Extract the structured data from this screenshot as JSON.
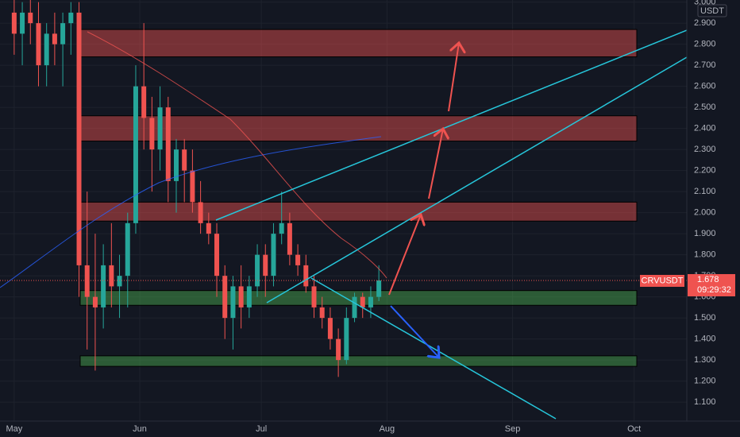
{
  "chart_data": {
    "type": "candlestick",
    "symbol": "CRVUSDT",
    "currency": "USDT",
    "last_price": {
      "value": 1.678,
      "label": "1.678"
    },
    "countdown": "09:29:32",
    "up_color": "#26a69a",
    "down_color": "#ef5350",
    "grid": true,
    "x": [
      0,
      2,
      4,
      6,
      8,
      10,
      12,
      14,
      16,
      18,
      20,
      22,
      24,
      26,
      28,
      30,
      32,
      34,
      36,
      38,
      40,
      42,
      44,
      46,
      48,
      50,
      52,
      54,
      56,
      58,
      60,
      62,
      64,
      66,
      68,
      70,
      72,
      74,
      76,
      78,
      80,
      82,
      84,
      86,
      88,
      90
    ],
    "open": [
      2.95,
      2.85,
      2.95,
      2.9,
      2.7,
      2.85,
      2.8,
      2.9,
      2.95,
      1.75,
      1.6,
      1.55,
      1.75,
      1.65,
      1.7,
      1.95,
      2.6,
      2.45,
      2.3,
      2.5,
      2.15,
      2.3,
      2.2,
      2.05,
      1.95,
      1.9,
      1.7,
      1.5,
      1.65,
      1.55,
      1.65,
      1.8,
      1.7,
      1.9,
      1.95,
      1.8,
      1.75,
      1.65,
      1.55,
      1.5,
      1.4,
      1.3,
      1.5,
      1.6,
      1.55,
      1.6
    ],
    "high": [
      3.05,
      3.0,
      3.05,
      3.0,
      2.9,
      2.95,
      2.95,
      3.0,
      3.0,
      2.1,
      1.9,
      1.85,
      1.95,
      1.8,
      2.0,
      2.7,
      2.9,
      2.55,
      2.6,
      2.55,
      2.35,
      2.35,
      2.3,
      2.15,
      2.0,
      1.95,
      1.75,
      1.7,
      1.75,
      1.7,
      1.85,
      1.85,
      1.95,
      2.1,
      2.0,
      1.85,
      1.8,
      1.7,
      1.6,
      1.55,
      1.45,
      1.55,
      1.62,
      1.62,
      1.65,
      1.75
    ],
    "low": [
      2.75,
      2.7,
      2.8,
      2.6,
      2.6,
      2.7,
      2.6,
      2.75,
      1.6,
      1.35,
      1.25,
      1.45,
      1.55,
      1.5,
      1.55,
      1.9,
      2.3,
      2.1,
      2.2,
      2.05,
      2.0,
      2.05,
      2.0,
      1.9,
      1.85,
      1.6,
      1.4,
      1.35,
      1.45,
      1.5,
      1.6,
      1.6,
      1.65,
      1.85,
      1.75,
      1.7,
      1.62,
      1.5,
      1.45,
      1.35,
      1.22,
      1.28,
      1.48,
      1.5,
      1.5,
      1.58
    ],
    "close": [
      2.85,
      2.95,
      2.9,
      2.7,
      2.85,
      2.8,
      2.9,
      2.95,
      1.75,
      1.6,
      1.55,
      1.75,
      1.65,
      1.7,
      1.95,
      2.6,
      2.45,
      2.3,
      2.5,
      2.15,
      2.3,
      2.2,
      2.05,
      1.95,
      1.9,
      1.7,
      1.5,
      1.65,
      1.55,
      1.65,
      1.8,
      1.7,
      1.9,
      1.95,
      1.8,
      1.75,
      1.65,
      1.55,
      1.5,
      1.4,
      1.3,
      1.5,
      1.6,
      1.55,
      1.6,
      1.678
    ],
    "zones": [
      {
        "low": 2.74,
        "high": 2.87,
        "color": "#ef5350"
      },
      {
        "low": 2.34,
        "high": 2.46,
        "color": "#ef5350"
      },
      {
        "low": 1.96,
        "high": 2.05,
        "color": "#ef5350"
      },
      {
        "low": 1.56,
        "high": 1.63,
        "color": "#4caf50"
      },
      {
        "low": 1.27,
        "high": 1.32,
        "color": "#4caf50"
      }
    ],
    "xlim": [
      -3.5,
      166
    ],
    "ylim": [
      1.01,
      3.01
    ],
    "xticks": [
      {
        "value": 0,
        "label": "May"
      },
      {
        "value": 31,
        "label": "Jun"
      },
      {
        "value": 61,
        "label": "Jul"
      },
      {
        "value": 92,
        "label": "Aug"
      },
      {
        "value": 123,
        "label": "Sep"
      },
      {
        "value": 153,
        "label": "Oct"
      }
    ],
    "yticks": [
      {
        "value": 1.1,
        "label": "1.100"
      },
      {
        "value": 1.2,
        "label": "1.200"
      },
      {
        "value": 1.3,
        "label": "1.300"
      },
      {
        "value": 1.4,
        "label": "1.400"
      },
      {
        "value": 1.5,
        "label": "1.500"
      },
      {
        "value": 1.6,
        "label": "1.600"
      },
      {
        "value": 1.7,
        "label": "1.700"
      },
      {
        "value": 1.8,
        "label": "1.800"
      },
      {
        "value": 1.9,
        "label": "1.900"
      },
      {
        "value": 2.0,
        "label": "2.000"
      },
      {
        "value": 2.1,
        "label": "2.100"
      },
      {
        "value": 2.2,
        "label": "2.200"
      },
      {
        "value": 2.3,
        "label": "2.300"
      },
      {
        "value": 2.4,
        "label": "2.400"
      },
      {
        "value": 2.5,
        "label": "2.500"
      },
      {
        "value": 2.6,
        "label": "2.600"
      },
      {
        "value": 2.7,
        "label": "2.700"
      },
      {
        "value": 2.8,
        "label": "2.800"
      },
      {
        "value": 2.9,
        "label": "2.900"
      },
      {
        "value": 3.0,
        "label": "3.000"
      }
    ]
  }
}
